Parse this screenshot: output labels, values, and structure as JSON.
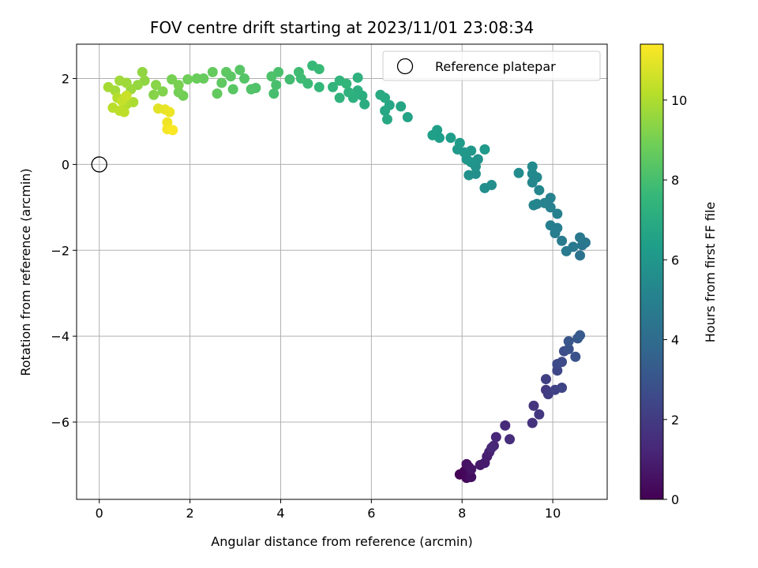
{
  "chart_data": {
    "type": "scatter",
    "title": "FOV centre drift starting at 2023/11/01 23:08:34",
    "xlabel": "Angular distance from reference (arcmin)",
    "ylabel": "Rotation from reference (arcmin)",
    "xlim": [
      -0.5,
      11.2
    ],
    "ylim": [
      -7.8,
      2.8
    ],
    "xticks": [
      0,
      2,
      4,
      6,
      8,
      10
    ],
    "xtick_labels": [
      "0",
      "2",
      "4",
      "6",
      "8",
      "10"
    ],
    "yticks": [
      -6,
      -4,
      -2,
      0,
      2
    ],
    "ytick_labels": [
      "−6",
      "−4",
      "−2",
      "0",
      "2"
    ],
    "grid": true,
    "legend_position": "top-right",
    "reference": {
      "label": "Reference platepar",
      "x": 0,
      "y": 0
    },
    "colorbar": {
      "label": "Hours from first FF file",
      "min": 0,
      "max": 11.4,
      "ticks": [
        0,
        2,
        4,
        6,
        8,
        10
      ],
      "tick_labels": [
        "0",
        "2",
        "4",
        "6",
        "8",
        "10"
      ],
      "colormap": "viridis"
    },
    "points": [
      {
        "x": 7.95,
        "y": -7.22,
        "h": 0.05
      },
      {
        "x": 8.05,
        "y": -7.15,
        "h": 0.15
      },
      {
        "x": 8.1,
        "y": -7.3,
        "h": 0.25
      },
      {
        "x": 8.15,
        "y": -7.05,
        "h": 0.35
      },
      {
        "x": 8.2,
        "y": -7.28,
        "h": 0.45
      },
      {
        "x": 8.1,
        "y": -6.98,
        "h": 0.55
      },
      {
        "x": 8.2,
        "y": -7.1,
        "h": 0.65
      },
      {
        "x": 8.4,
        "y": -7.0,
        "h": 0.75
      },
      {
        "x": 8.5,
        "y": -6.95,
        "h": 0.85
      },
      {
        "x": 8.55,
        "y": -6.8,
        "h": 0.95
      },
      {
        "x": 8.6,
        "y": -6.7,
        "h": 1.05
      },
      {
        "x": 8.7,
        "y": -6.55,
        "h": 1.15
      },
      {
        "x": 8.75,
        "y": -6.35,
        "h": 1.25
      },
      {
        "x": 8.65,
        "y": -6.6,
        "h": 1.3
      },
      {
        "x": 8.95,
        "y": -6.08,
        "h": 1.4
      },
      {
        "x": 9.05,
        "y": -6.4,
        "h": 1.5
      },
      {
        "x": 9.55,
        "y": -6.02,
        "h": 1.65
      },
      {
        "x": 9.58,
        "y": -5.62,
        "h": 1.75
      },
      {
        "x": 9.7,
        "y": -5.82,
        "h": 1.85
      },
      {
        "x": 9.85,
        "y": -5.25,
        "h": 1.95
      },
      {
        "x": 9.9,
        "y": -5.35,
        "h": 2.05
      },
      {
        "x": 9.85,
        "y": -5.0,
        "h": 2.15
      },
      {
        "x": 10.05,
        "y": -5.25,
        "h": 2.25
      },
      {
        "x": 10.2,
        "y": -5.2,
        "h": 2.35
      },
      {
        "x": 10.1,
        "y": -4.8,
        "h": 2.45
      },
      {
        "x": 10.1,
        "y": -4.65,
        "h": 2.55
      },
      {
        "x": 10.2,
        "y": -4.6,
        "h": 2.65
      },
      {
        "x": 10.25,
        "y": -4.35,
        "h": 2.75
      },
      {
        "x": 10.35,
        "y": -4.3,
        "h": 2.85
      },
      {
        "x": 10.5,
        "y": -4.48,
        "h": 2.95
      },
      {
        "x": 10.35,
        "y": -4.12,
        "h": 3.05
      },
      {
        "x": 10.55,
        "y": -4.05,
        "h": 3.15
      },
      {
        "x": 10.6,
        "y": -3.98,
        "h": 3.25
      },
      {
        "x": 10.6,
        "y": -2.12,
        "h": 4.4
      },
      {
        "x": 10.65,
        "y": -1.88,
        "h": 4.5
      },
      {
        "x": 10.72,
        "y": -1.82,
        "h": 4.55
      },
      {
        "x": 10.6,
        "y": -1.7,
        "h": 4.6
      },
      {
        "x": 10.45,
        "y": -1.92,
        "h": 4.65
      },
      {
        "x": 10.3,
        "y": -2.02,
        "h": 4.7
      },
      {
        "x": 10.2,
        "y": -1.78,
        "h": 4.75
      },
      {
        "x": 10.05,
        "y": -1.6,
        "h": 4.8
      },
      {
        "x": 10.1,
        "y": -1.48,
        "h": 4.85
      },
      {
        "x": 9.95,
        "y": -1.42,
        "h": 4.9
      },
      {
        "x": 10.1,
        "y": -1.15,
        "h": 4.95
      },
      {
        "x": 9.95,
        "y": -1.0,
        "h": 5.0
      },
      {
        "x": 9.95,
        "y": -0.78,
        "h": 5.05
      },
      {
        "x": 9.82,
        "y": -0.9,
        "h": 5.1
      },
      {
        "x": 9.65,
        "y": -0.92,
        "h": 5.15
      },
      {
        "x": 9.58,
        "y": -0.95,
        "h": 5.2
      },
      {
        "x": 9.7,
        "y": -0.6,
        "h": 5.25
      },
      {
        "x": 9.55,
        "y": -0.42,
        "h": 5.3
      },
      {
        "x": 9.65,
        "y": -0.3,
        "h": 5.35
      },
      {
        "x": 9.55,
        "y": -0.22,
        "h": 5.4
      },
      {
        "x": 9.55,
        "y": -0.05,
        "h": 5.45
      },
      {
        "x": 9.25,
        "y": -0.2,
        "h": 5.5
      },
      {
        "x": 8.65,
        "y": -0.48,
        "h": 5.6
      },
      {
        "x": 8.5,
        "y": -0.55,
        "h": 5.65
      },
      {
        "x": 8.3,
        "y": -0.22,
        "h": 5.7
      },
      {
        "x": 8.15,
        "y": -0.25,
        "h": 5.75
      },
      {
        "x": 8.3,
        "y": -0.05,
        "h": 5.8
      },
      {
        "x": 8.35,
        "y": 0.12,
        "h": 5.85
      },
      {
        "x": 8.2,
        "y": 0.05,
        "h": 5.9
      },
      {
        "x": 8.1,
        "y": 0.12,
        "h": 5.95
      },
      {
        "x": 8.2,
        "y": 0.32,
        "h": 6.0
      },
      {
        "x": 8.05,
        "y": 0.28,
        "h": 6.05
      },
      {
        "x": 7.9,
        "y": 0.35,
        "h": 6.1
      },
      {
        "x": 8.5,
        "y": 0.35,
        "h": 6.15
      },
      {
        "x": 7.95,
        "y": 0.5,
        "h": 6.2
      },
      {
        "x": 7.75,
        "y": 0.62,
        "h": 6.3
      },
      {
        "x": 7.5,
        "y": 0.62,
        "h": 6.35
      },
      {
        "x": 7.45,
        "y": 0.8,
        "h": 6.4
      },
      {
        "x": 7.35,
        "y": 0.68,
        "h": 6.45
      },
      {
        "x": 6.8,
        "y": 1.1,
        "h": 6.6
      },
      {
        "x": 6.65,
        "y": 1.35,
        "h": 6.7
      },
      {
        "x": 6.4,
        "y": 1.38,
        "h": 6.75
      },
      {
        "x": 6.3,
        "y": 1.25,
        "h": 6.8
      },
      {
        "x": 6.35,
        "y": 1.05,
        "h": 6.85
      },
      {
        "x": 6.3,
        "y": 1.55,
        "h": 6.9
      },
      {
        "x": 6.2,
        "y": 1.62,
        "h": 6.95
      },
      {
        "x": 5.85,
        "y": 1.4,
        "h": 7.05
      },
      {
        "x": 5.8,
        "y": 1.6,
        "h": 7.1
      },
      {
        "x": 5.7,
        "y": 1.72,
        "h": 7.15
      },
      {
        "x": 5.6,
        "y": 1.55,
        "h": 7.2
      },
      {
        "x": 5.7,
        "y": 2.02,
        "h": 7.25
      },
      {
        "x": 5.5,
        "y": 1.68,
        "h": 7.3
      },
      {
        "x": 5.3,
        "y": 1.55,
        "h": 7.35
      },
      {
        "x": 5.15,
        "y": 1.8,
        "h": 7.4
      },
      {
        "x": 5.3,
        "y": 1.95,
        "h": 7.45
      },
      {
        "x": 5.45,
        "y": 1.88,
        "h": 7.5
      },
      {
        "x": 4.85,
        "y": 1.8,
        "h": 7.6
      },
      {
        "x": 4.7,
        "y": 2.3,
        "h": 7.65
      },
      {
        "x": 4.85,
        "y": 2.22,
        "h": 7.7
      },
      {
        "x": 4.6,
        "y": 1.88,
        "h": 7.75
      },
      {
        "x": 4.45,
        "y": 2.0,
        "h": 7.8
      },
      {
        "x": 4.4,
        "y": 2.15,
        "h": 7.85
      },
      {
        "x": 4.2,
        "y": 1.98,
        "h": 7.9
      },
      {
        "x": 3.85,
        "y": 1.65,
        "h": 8.0
      },
      {
        "x": 3.9,
        "y": 1.85,
        "h": 8.05
      },
      {
        "x": 3.95,
        "y": 2.15,
        "h": 8.1
      },
      {
        "x": 3.8,
        "y": 2.05,
        "h": 8.15
      },
      {
        "x": 3.45,
        "y": 1.78,
        "h": 8.2
      },
      {
        "x": 3.35,
        "y": 1.75,
        "h": 8.25
      },
      {
        "x": 3.2,
        "y": 2.0,
        "h": 8.3
      },
      {
        "x": 3.1,
        "y": 2.2,
        "h": 8.35
      },
      {
        "x": 2.95,
        "y": 1.75,
        "h": 8.4
      },
      {
        "x": 2.9,
        "y": 2.05,
        "h": 8.45
      },
      {
        "x": 2.8,
        "y": 2.15,
        "h": 8.5
      },
      {
        "x": 2.7,
        "y": 1.9,
        "h": 8.55
      },
      {
        "x": 2.6,
        "y": 1.65,
        "h": 8.6
      },
      {
        "x": 2.5,
        "y": 2.15,
        "h": 8.65
      },
      {
        "x": 2.3,
        "y": 2.0,
        "h": 8.7
      },
      {
        "x": 2.15,
        "y": 2.0,
        "h": 8.75
      },
      {
        "x": 1.95,
        "y": 1.98,
        "h": 8.85
      },
      {
        "x": 1.85,
        "y": 1.6,
        "h": 8.9
      },
      {
        "x": 1.75,
        "y": 1.68,
        "h": 8.95
      },
      {
        "x": 1.6,
        "y": 1.98,
        "h": 9.0
      },
      {
        "x": 1.75,
        "y": 1.85,
        "h": 9.05
      },
      {
        "x": 1.4,
        "y": 1.7,
        "h": 9.2
      },
      {
        "x": 1.2,
        "y": 1.62,
        "h": 9.3
      },
      {
        "x": 1.25,
        "y": 1.85,
        "h": 9.35
      },
      {
        "x": 1.0,
        "y": 1.95,
        "h": 9.45
      },
      {
        "x": 0.95,
        "y": 2.15,
        "h": 9.5
      },
      {
        "x": 0.85,
        "y": 1.85,
        "h": 9.55
      },
      {
        "x": 0.7,
        "y": 1.75,
        "h": 9.65
      },
      {
        "x": 0.6,
        "y": 1.9,
        "h": 9.7
      },
      {
        "x": 0.45,
        "y": 1.95,
        "h": 9.75
      },
      {
        "x": 0.35,
        "y": 1.72,
        "h": 9.8
      },
      {
        "x": 0.2,
        "y": 1.8,
        "h": 9.85
      },
      {
        "x": 0.75,
        "y": 1.45,
        "h": 9.95
      },
      {
        "x": 0.6,
        "y": 1.4,
        "h": 10.05
      },
      {
        "x": 0.4,
        "y": 1.55,
        "h": 10.1
      },
      {
        "x": 0.3,
        "y": 1.32,
        "h": 10.2
      },
      {
        "x": 0.45,
        "y": 1.25,
        "h": 10.25
      },
      {
        "x": 0.55,
        "y": 1.22,
        "h": 10.3
      },
      {
        "x": 0.5,
        "y": 1.48,
        "h": 10.4
      },
      {
        "x": 0.6,
        "y": 1.6,
        "h": 10.5
      },
      {
        "x": 1.3,
        "y": 1.3,
        "h": 10.9
      },
      {
        "x": 1.45,
        "y": 1.28,
        "h": 11.0
      },
      {
        "x": 1.55,
        "y": 1.22,
        "h": 11.1
      },
      {
        "x": 1.5,
        "y": 0.98,
        "h": 11.15
      },
      {
        "x": 1.5,
        "y": 0.82,
        "h": 11.25
      },
      {
        "x": 1.62,
        "y": 0.8,
        "h": 11.35
      }
    ]
  }
}
